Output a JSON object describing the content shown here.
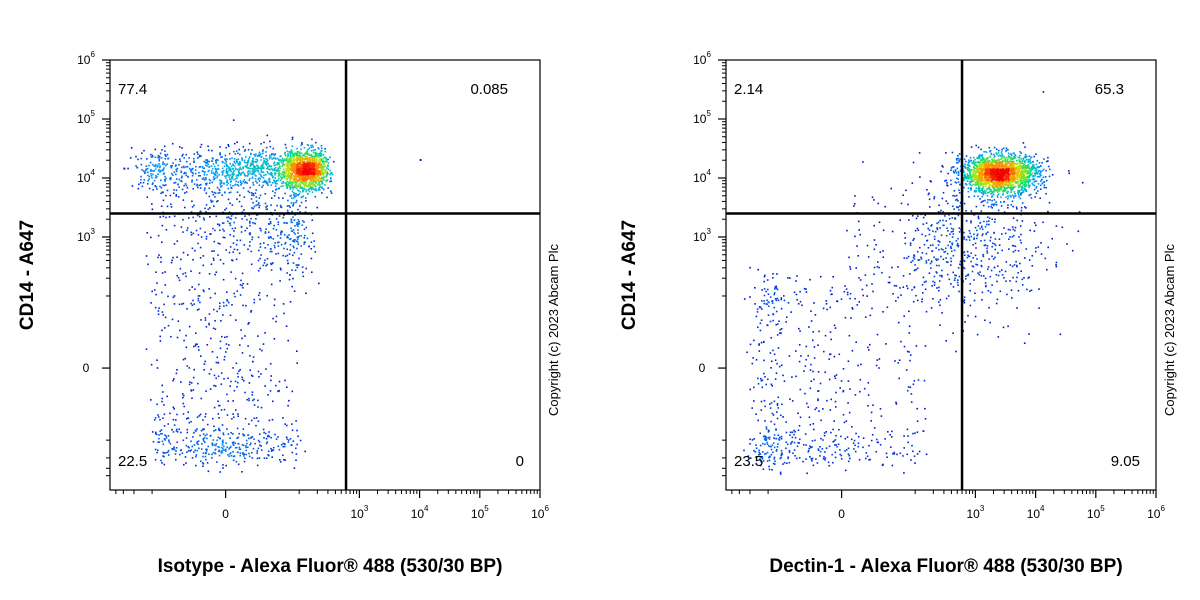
{
  "chart_data": [
    {
      "type": "scatter",
      "subtype": "flow-cytometry-density-dot-plot",
      "xlabel": "Isotype - Alexa Fluor® 488 (530/30 BP)",
      "ylabel": "CD14 - A647",
      "x_scale": "biexponential",
      "y_scale": "biexponential",
      "xlim": [
        -500,
        1000000
      ],
      "ylim": [
        -700,
        1000000
      ],
      "x_ticks": [
        {
          "label": "0",
          "value": 0
        },
        {
          "label": "10",
          "sup": "3",
          "value": 1000
        },
        {
          "label": "10",
          "sup": "4",
          "value": 10000
        },
        {
          "label": "10",
          "sup": "5",
          "value": 100000
        },
        {
          "label": "10",
          "sup": "6",
          "value": 1000000
        }
      ],
      "y_ticks": [
        {
          "label": "0",
          "value": 0
        },
        {
          "label": "10",
          "sup": "3",
          "value": 1000
        },
        {
          "label": "10",
          "sup": "4",
          "value": 10000
        },
        {
          "label": "10",
          "sup": "5",
          "value": 100000
        },
        {
          "label": "10",
          "sup": "6",
          "value": 1000000
        }
      ],
      "gate": {
        "x": 600,
        "y": 2500
      },
      "quadrant_percentages": {
        "upper_left": "77.4",
        "upper_right": "0.085",
        "lower_left": "22.5",
        "lower_right": "0"
      },
      "populations": [
        {
          "x_center": 80,
          "x_spread": 90,
          "y_center": 14000,
          "y_spread_log": 0.18,
          "weight": 0.62
        },
        {
          "x_center": -10,
          "x_spread": 40,
          "y_center": -60,
          "y_spread": 90,
          "weight": 0.2
        },
        {
          "x_center": 30,
          "x_spread": 55,
          "y_center": 1500,
          "y_spread_log": 0.55,
          "weight": 0.18
        }
      ],
      "outliers": [
        {
          "x": 10000,
          "y": 21000
        },
        {
          "x": -300,
          "y": 15000
        }
      ],
      "copyright": "Copyright (c) 2023 Abcam Plc",
      "grid": false,
      "legend": "none"
    },
    {
      "type": "scatter",
      "subtype": "flow-cytometry-density-dot-plot",
      "xlabel": "Dectin-1 - Alexa Fluor® 488 (530/30 BP)",
      "ylabel": "CD14 - A647",
      "x_scale": "biexponential",
      "y_scale": "biexponential",
      "xlim": [
        -500,
        1000000
      ],
      "ylim": [
        -700,
        1000000
      ],
      "x_ticks": [
        {
          "label": "0",
          "value": 0
        },
        {
          "label": "10",
          "sup": "3",
          "value": 1000
        },
        {
          "label": "10",
          "sup": "4",
          "value": 10000
        },
        {
          "label": "10",
          "sup": "5",
          "value": 100000
        },
        {
          "label": "10",
          "sup": "6",
          "value": 1000000
        }
      ],
      "y_ticks": [
        {
          "label": "0",
          "value": 0
        },
        {
          "label": "10",
          "sup": "3",
          "value": 1000
        },
        {
          "label": "10",
          "sup": "4",
          "value": 10000
        },
        {
          "label": "10",
          "sup": "5",
          "value": 100000
        },
        {
          "label": "10",
          "sup": "6",
          "value": 1000000
        }
      ],
      "gate": {
        "x": 600,
        "y": 2500
      },
      "quadrant_percentages": {
        "upper_left": "2.14",
        "upper_right": "65.3",
        "lower_left": "23.5",
        "lower_right": "9.05"
      },
      "populations": [
        {
          "x_center": 2500,
          "x_spread_log": 0.32,
          "y_center": 12000,
          "y_spread_log": 0.16,
          "weight": 0.6
        },
        {
          "x_center": -40,
          "x_spread": 70,
          "y_center": -40,
          "y_spread": 110,
          "weight": 0.2
        },
        {
          "x_center": 600,
          "x_spread_log": 0.7,
          "y_center": 800,
          "y_spread_log": 0.6,
          "weight": 0.2
        }
      ],
      "outliers": [],
      "copyright": "Copyright (c) 2023 Abcam Plc",
      "grid": false,
      "legend": "none"
    }
  ]
}
